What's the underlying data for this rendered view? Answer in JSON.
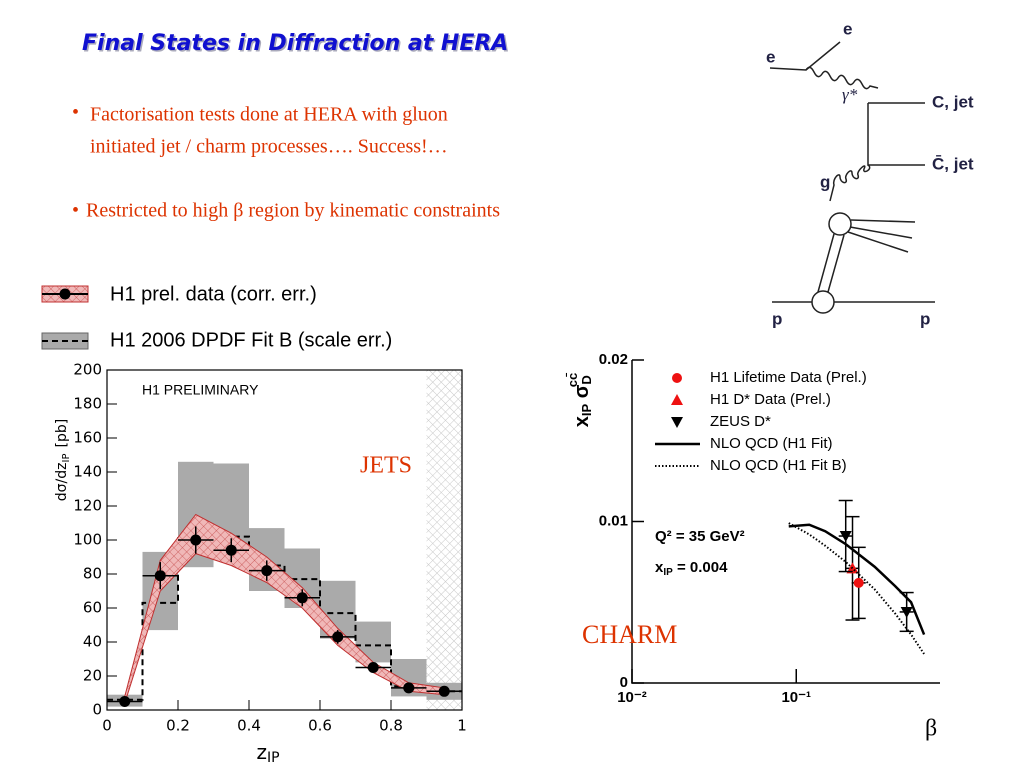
{
  "title": "Final States in Diffraction at HERA",
  "bullets": [
    "Factorisation tests done at HERA with gluon",
    "initiated jet / charm processes…. Success!…",
    "Restricted to high β region by kinematic constraints"
  ],
  "diagram": {
    "e_in": "e",
    "e_out": "e",
    "photon": "γ*",
    "quark": "C, jet",
    "antiquark": "C̄, jet",
    "gluon": "g",
    "p_in": "p",
    "p_out": "p"
  },
  "chart_data": [
    {
      "type": "histogram",
      "label": "H1 PRELIMINARY",
      "annotation": "JETS",
      "xlabel": {
        "text": "z",
        "sub": "IP"
      },
      "ylabel": {
        "text": "dσ/dz",
        "sub": "IP",
        "unit": "[pb]"
      },
      "bins": [
        0,
        0.1,
        0.2,
        0.3,
        0.4,
        0.5,
        0.6,
        0.7,
        0.8,
        0.9,
        1
      ],
      "xlim": [
        0,
        1
      ],
      "xticks": [
        0,
        0.2,
        0.4,
        0.6,
        0.8,
        1
      ],
      "ylim": [
        0,
        200
      ],
      "yticks": [
        0,
        20,
        40,
        60,
        80,
        100,
        120,
        140,
        160,
        180,
        200
      ],
      "excluded_range": [
        0.9,
        1
      ],
      "series": [
        {
          "name": "H1 prel. data (corr. err.)",
          "color": "#000000",
          "band_color": "#e8a4a4",
          "values": [
            5,
            79,
            100,
            94,
            82,
            66,
            43,
            25,
            13,
            11
          ],
          "errors": [
            3,
            8,
            8,
            7,
            6,
            5,
            4,
            3,
            3,
            3
          ],
          "band_low": [
            4,
            70,
            92,
            85,
            75,
            60,
            38,
            22,
            11,
            9
          ],
          "band_high": [
            8,
            88,
            115,
            104,
            90,
            72,
            48,
            28,
            16,
            13
          ]
        },
        {
          "name": "H1 2006 DPDF Fit B (scale err.)",
          "color": "#000000",
          "band_color": "#aaaaaa",
          "values": [
            6,
            63,
            101,
            102,
            85,
            77,
            57,
            38,
            14,
            11
          ],
          "band_low": [
            2,
            47,
            84,
            90,
            70,
            60,
            42,
            28,
            8,
            6
          ],
          "band_high": [
            9,
            93,
            146,
            145,
            107,
            95,
            76,
            52,
            30,
            16
          ]
        }
      ]
    },
    {
      "type": "scatter",
      "xscale": "log",
      "xlabel": "β",
      "ylabel": [
        {
          "t": "x"
        },
        {
          "t": "IP",
          "sub": true
        },
        {
          "t": " σ"
        },
        {
          "t": "D",
          "sub": true
        },
        {
          "t": "cc̄",
          "sup": true
        }
      ],
      "annotations": [
        "Q² = 35 GeV²",
        "CHARM"
      ],
      "xip_label": {
        "text": "x",
        "sub": "IP",
        "rest": " = 0.004"
      },
      "xlim": [
        0.01,
        0.75
      ],
      "xticks": [
        {
          "value": 0.01,
          "label": "10⁻²"
        },
        {
          "value": 0.1,
          "label": "10⁻¹"
        }
      ],
      "ylim": [
        0,
        0.02
      ],
      "yticks": [
        0,
        0.01,
        0.02
      ],
      "series": [
        {
          "name": "H1 Lifetime Data (Prel.)",
          "color": "#ee1111",
          "marker": "circle",
          "x": [
            0.24
          ],
          "values": [
            0.0062
          ],
          "errors": [
            0.0022
          ]
        },
        {
          "name": "H1 D* Data (Prel.)",
          "color": "#ee1111",
          "marker": "triangle",
          "x": [
            0.22
          ],
          "values": [
            0.0071
          ],
          "errors": [
            0.0032
          ]
        },
        {
          "name": "ZEUS D*",
          "color": "#000000",
          "marker": "triangle-down",
          "x": [
            0.2,
            0.47
          ],
          "values": [
            0.0091,
            0.0044
          ],
          "errors": [
            0.0022,
            0.0012
          ]
        },
        {
          "name": "NLO QCD (H1 Fit)",
          "color": "#000000",
          "line": "solid",
          "x": [
            0.09,
            0.12,
            0.15,
            0.2,
            0.3,
            0.4,
            0.5,
            0.6
          ],
          "values": [
            0.0097,
            0.0098,
            0.0094,
            0.0086,
            0.0072,
            0.006,
            0.005,
            0.003
          ]
        },
        {
          "name": "NLO QCD (H1 Fit B)",
          "color": "#000000",
          "line": "dotted",
          "x": [
            0.09,
            0.12,
            0.15,
            0.2,
            0.3,
            0.4,
            0.5,
            0.6
          ],
          "values": [
            0.0099,
            0.0092,
            0.0085,
            0.0075,
            0.0058,
            0.0043,
            0.003,
            0.0018
          ]
        }
      ]
    }
  ]
}
